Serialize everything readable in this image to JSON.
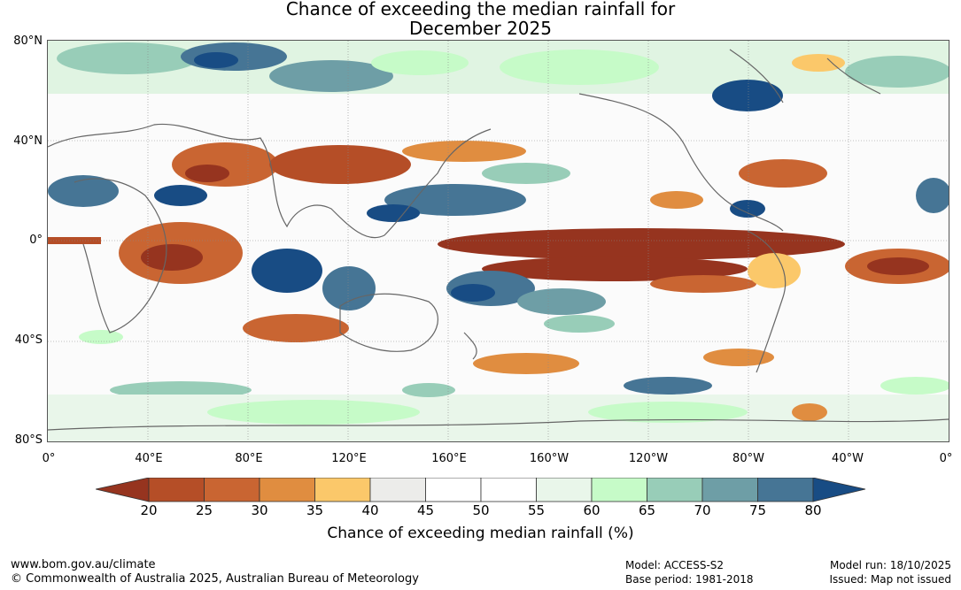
{
  "title": {
    "line1": "Chance of exceeding the median rainfall for",
    "line2": "December 2025"
  },
  "map": {
    "y_axis_labels": [
      "80°N",
      "40°N",
      "0°",
      "40°S",
      "80°S"
    ],
    "x_axis_labels": [
      "0°",
      "40°E",
      "80°E",
      "120°E",
      "160°E",
      "160°W",
      "120°W",
      "80°W",
      "40°W",
      "0°"
    ]
  },
  "colorbar": {
    "ticks": [
      "20",
      "25",
      "30",
      "35",
      "40",
      "45",
      "50",
      "55",
      "60",
      "65",
      "70",
      "75",
      "80"
    ],
    "label": "Chance of exceeding median rainfall (%)",
    "colors": {
      "below_20": "#96341f",
      "20_25": "#b54e27",
      "25_30": "#c96532",
      "30_35": "#e08d40",
      "35_40": "#fbc86a",
      "40_45": "#ececea",
      "45_50": "#ffffff",
      "50_55": "#ffffff",
      "55_60": "#e9f6ea",
      "60_65": "#c6fbc8",
      "65_70": "#98cdb8",
      "70_75": "#6e9ea6",
      "75_80": "#467595",
      "above_80": "#184c84"
    }
  },
  "footer": {
    "website": "www.bom.gov.au/climate",
    "copyright": "© Commonwealth of Australia 2025, Australian Bureau of Meteorology",
    "model": "Model: ACCESS-S2",
    "base_period": "Base period: 1981-2018",
    "model_run": "Model run: 18/10/2025",
    "issued": "Issued: Map not issued"
  }
}
